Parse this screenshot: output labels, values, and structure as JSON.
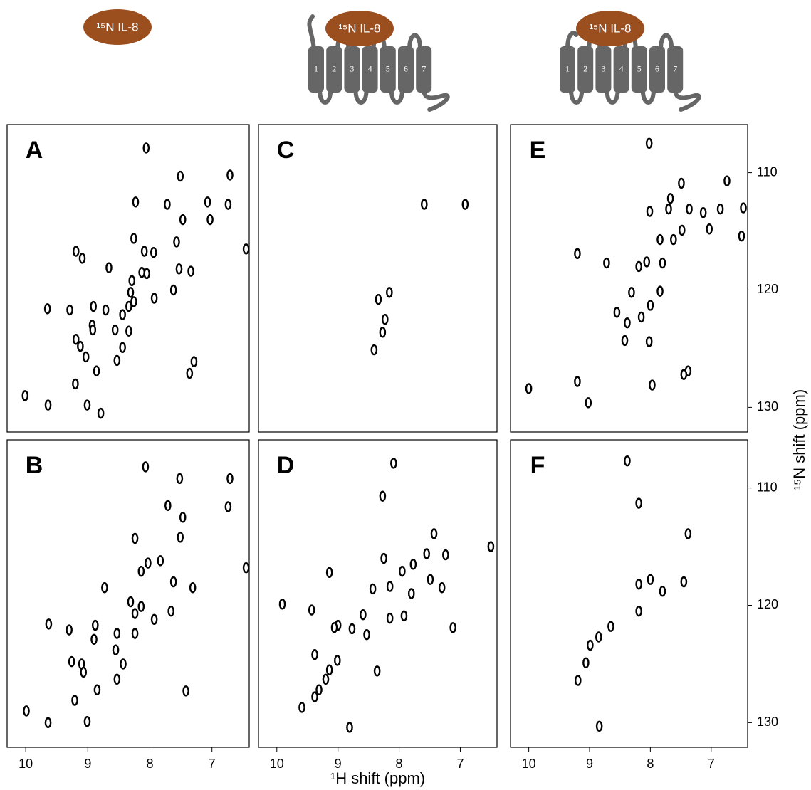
{
  "header": {
    "ligand": "¹⁵N IL-8",
    "helices": [
      "1",
      "2",
      "3",
      "4",
      "5",
      "6",
      "7"
    ]
  },
  "chart_data": [
    {
      "type": "scatter",
      "title": "A",
      "color": "#000000",
      "xlim": [
        10.3,
        6.4
      ],
      "ylim": [
        132.1,
        105.9
      ],
      "x": [
        8.06,
        7.51,
        6.71,
        8.23,
        7.72,
        7.07,
        6.74,
        7.47,
        7.03,
        8.26,
        9.19,
        9.09,
        7.57,
        8.09,
        7.94,
        8.66,
        7.34,
        7.53,
        8.13,
        8.29,
        8.05,
        8.31,
        7.62,
        7.93,
        9.65,
        9.29,
        8.91,
        8.71,
        8.26,
        8.34,
        8.44,
        8.93,
        8.92,
        8.56,
        8.34,
        9.19,
        9.12,
        9.03,
        8.44,
        8.53,
        8.86,
        7.36,
        7.29,
        9.2,
        10.01,
        9.64,
        9.01,
        8.79,
        6.45
      ],
      "y": [
        107.9,
        110.3,
        110.2,
        112.5,
        112.7,
        112.5,
        112.7,
        114.0,
        114.0,
        115.6,
        116.7,
        117.3,
        115.9,
        116.7,
        116.8,
        118.1,
        118.4,
        118.2,
        118.5,
        119.2,
        118.6,
        120.2,
        120.0,
        120.7,
        121.6,
        121.7,
        121.4,
        121.7,
        121.0,
        121.4,
        122.1,
        123.0,
        123.4,
        123.4,
        123.5,
        124.2,
        124.8,
        125.7,
        124.9,
        126.0,
        126.9,
        127.1,
        126.1,
        128.0,
        129.0,
        129.8,
        129.8,
        130.5,
        116.5
      ]
    },
    {
      "type": "scatter",
      "title": "C",
      "color": "#000000",
      "xlim": [
        10.3,
        6.4
      ],
      "ylim": [
        132.1,
        105.9
      ],
      "x": [
        7.59,
        6.92,
        8.34,
        8.16,
        8.23,
        8.27,
        8.41
      ],
      "y": [
        112.7,
        112.7,
        120.8,
        120.2,
        122.5,
        123.6,
        125.1
      ]
    },
    {
      "type": "scatter",
      "title": "E",
      "color": "#000000",
      "xlim": [
        10.3,
        6.4
      ],
      "ylim": [
        132.1,
        105.9
      ],
      "yticks": [
        110,
        120,
        130
      ],
      "x": [
        8.02,
        7.49,
        6.74,
        7.67,
        7.36,
        7.7,
        8.01,
        6.85,
        7.13,
        6.47,
        7.48,
        7.03,
        7.84,
        7.62,
        9.2,
        8.72,
        7.8,
        8.06,
        8.19,
        8.31,
        8.0,
        8.55,
        8.38,
        8.15,
        8.42,
        8.02,
        7.38,
        7.45,
        9.2,
        7.97,
        10.0,
        9.02,
        6.5,
        7.84
      ],
      "y": [
        107.5,
        110.9,
        110.7,
        112.2,
        113.1,
        113.1,
        113.3,
        113.1,
        113.4,
        113.0,
        114.9,
        114.8,
        115.7,
        115.7,
        116.9,
        117.7,
        117.7,
        117.6,
        118.0,
        120.2,
        121.3,
        121.9,
        122.8,
        122.3,
        124.3,
        124.4,
        126.9,
        127.2,
        127.8,
        128.1,
        128.4,
        129.6,
        115.4,
        120.1
      ]
    },
    {
      "type": "scatter",
      "title": "B",
      "color": "#000000",
      "xlim": [
        10.3,
        6.4
      ],
      "ylim": [
        132.1,
        105.9
      ],
      "xticks": [
        10,
        9,
        8,
        7
      ],
      "x": [
        8.07,
        7.52,
        6.71,
        7.71,
        6.74,
        7.47,
        8.24,
        7.51,
        7.83,
        8.03,
        8.14,
        8.73,
        7.62,
        7.31,
        8.31,
        8.14,
        8.24,
        7.93,
        7.66,
        9.63,
        9.3,
        8.88,
        8.9,
        8.53,
        8.24,
        8.55,
        8.43,
        9.26,
        9.1,
        9.07,
        8.53,
        8.85,
        7.42,
        9.21,
        9.99,
        9.64,
        9.01,
        6.45
      ],
      "y": [
        108.2,
        109.2,
        109.2,
        111.5,
        111.6,
        112.5,
        114.3,
        114.2,
        116.2,
        116.4,
        117.1,
        118.5,
        118.0,
        118.5,
        119.7,
        120.1,
        120.7,
        121.2,
        120.5,
        121.6,
        122.1,
        121.7,
        122.9,
        122.4,
        122.4,
        123.8,
        125.0,
        124.8,
        125.0,
        125.7,
        126.3,
        127.2,
        127.3,
        128.1,
        129.0,
        130.0,
        129.9,
        116.8
      ]
    },
    {
      "type": "scatter",
      "title": "D",
      "color": "#000000",
      "xlim": [
        10.3,
        6.4
      ],
      "ylim": [
        132.1,
        105.9
      ],
      "xticks": [
        10,
        9,
        8,
        7
      ],
      "xlabel": "¹H shift (ppm)",
      "x": [
        8.09,
        8.27,
        7.43,
        6.5,
        8.25,
        7.95,
        7.77,
        9.14,
        8.43,
        8.15,
        7.49,
        7.3,
        7.8,
        9.91,
        9.43,
        7.92,
        8.15,
        8.59,
        9.0,
        8.77,
        9.06,
        8.53,
        7.12,
        9.38,
        9.01,
        9.14,
        9.2,
        9.31,
        8.36,
        9.38,
        9.59,
        8.81,
        7.55,
        7.24
      ],
      "y": [
        107.9,
        110.7,
        113.9,
        115.0,
        116.0,
        117.1,
        116.5,
        117.2,
        118.6,
        118.4,
        117.8,
        118.5,
        119.0,
        119.9,
        120.4,
        120.9,
        121.1,
        120.8,
        121.7,
        122.0,
        121.9,
        122.5,
        121.9,
        124.2,
        124.7,
        125.5,
        126.3,
        127.2,
        125.6,
        127.8,
        128.7,
        130.4,
        115.6,
        115.7
      ]
    },
    {
      "type": "scatter",
      "title": "F",
      "color": "#000000",
      "xlim": [
        10.3,
        6.4
      ],
      "ylim": [
        132.1,
        105.9
      ],
      "xticks": [
        10,
        9,
        8,
        7
      ],
      "yticks": [
        110,
        120,
        130
      ],
      "ylabel": "¹⁵N shift (ppm)",
      "x": [
        8.38,
        8.19,
        7.38,
        8.19,
        8.0,
        7.45,
        7.8,
        8.19,
        8.65,
        8.85,
        8.99,
        9.06,
        9.19,
        8.84
      ],
      "y": [
        107.7,
        111.3,
        113.9,
        118.2,
        117.8,
        118.0,
        118.8,
        120.5,
        121.8,
        122.7,
        123.4,
        124.9,
        126.4,
        130.3
      ]
    }
  ]
}
